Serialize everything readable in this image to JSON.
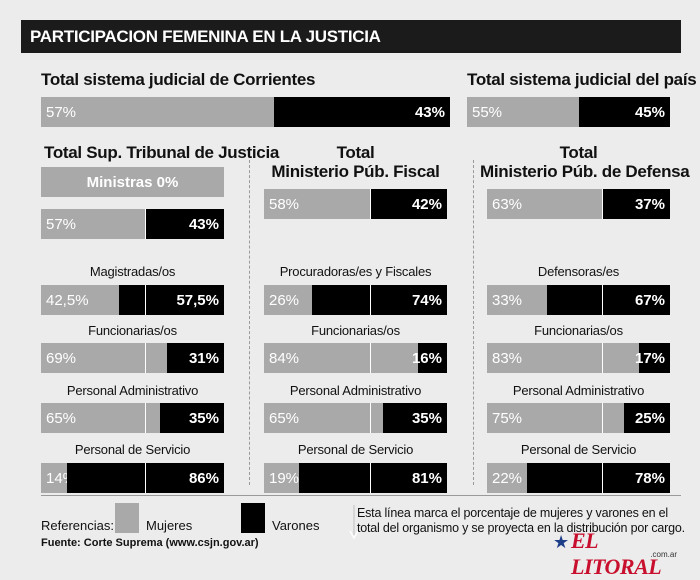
{
  "title": "PARTICIPACION FEMENINA EN LA JUSTICIA",
  "colors": {
    "mujeres": "#a9a9a9",
    "varones": "#000000",
    "title_bg": "#1b1b1b"
  },
  "chart_data": [
    {
      "type": "bar",
      "stacked": true,
      "title": "Total sistema judicial de Corrientes",
      "categories": [
        "Total sistema judicial de Corrientes"
      ],
      "series": [
        {
          "name": "Mujeres",
          "values": [
            57
          ]
        },
        {
          "name": "Varones",
          "values": [
            43
          ]
        }
      ],
      "labels": {
        "w": "57%",
        "m": "43%"
      }
    },
    {
      "type": "bar",
      "stacked": true,
      "title": "Total sistema judicial del país",
      "categories": [
        "Total sistema judicial del país"
      ],
      "series": [
        {
          "name": "Mujeres",
          "values": [
            55
          ]
        },
        {
          "name": "Varones",
          "values": [
            45
          ]
        }
      ],
      "labels": {
        "w": "55%",
        "m": "45%"
      }
    },
    {
      "type": "bar",
      "stacked": true,
      "title": "Total Sup. Tribunal de Justicia",
      "ministras_label": "Ministras 0%",
      "categories": [
        "Total",
        "Magistradas/os",
        "Funcionarias/os",
        "Personal Administrativo",
        "Personal de Servicio"
      ],
      "series": [
        {
          "name": "Mujeres",
          "values": [
            57,
            42.5,
            69,
            65,
            14
          ]
        },
        {
          "name": "Varones",
          "values": [
            43,
            57.5,
            31,
            35,
            86
          ]
        }
      ],
      "w_labels": [
        "57%",
        "42,5%",
        "69%",
        "65%",
        "14%"
      ],
      "m_labels": [
        "43%",
        "57,5%",
        "31%",
        "35%",
        "86%"
      ]
    },
    {
      "type": "bar",
      "stacked": true,
      "title": "Total Ministerio Púb. Fiscal",
      "categories": [
        "Total",
        "Procuradoras/es y Fiscales",
        "Funcionarias/os",
        "Personal Administrativo",
        "Personal de Servicio"
      ],
      "series": [
        {
          "name": "Mujeres",
          "values": [
            58,
            26,
            84,
            65,
            19
          ]
        },
        {
          "name": "Varones",
          "values": [
            42,
            74,
            16,
            35,
            81
          ]
        }
      ],
      "w_labels": [
        "58%",
        "26%",
        "84%",
        "65%",
        "19%"
      ],
      "m_labels": [
        "42%",
        "74%",
        "16%",
        "35%",
        "81%"
      ]
    },
    {
      "type": "bar",
      "stacked": true,
      "title": "Total Ministerio Púb. de Defensa",
      "categories": [
        "Total",
        "Defensoras/es",
        "Funcionarias/os",
        "Personal Administrativo",
        "Personal de Servicio"
      ],
      "series": [
        {
          "name": "Mujeres",
          "values": [
            63,
            33,
            83,
            75,
            22
          ]
        },
        {
          "name": "Varones",
          "values": [
            37,
            67,
            17,
            25,
            78
          ]
        }
      ],
      "w_labels": [
        "63%",
        "33%",
        "83%",
        "75%",
        "22%"
      ],
      "m_labels": [
        "37%",
        "67%",
        "17%",
        "25%",
        "78%"
      ]
    }
  ],
  "headings": {
    "corrientes": "Total sistema judicial de Corrientes",
    "pais": "Total sistema judicial del país",
    "stj": "Total Sup. Tribunal de Justicia",
    "fiscal_line1": "Total",
    "fiscal_line2": "Ministerio Púb. Fiscal",
    "defensa_line1": "Total",
    "defensa_line2": "Ministerio Púb. de Defensa"
  },
  "legend": {
    "referencias": "Referencias:",
    "mujeres": "Mujeres",
    "varones": "Varones",
    "note_line1": "Esta línea marca el porcentaje de mujeres y varones en el",
    "note_line2": "total del organismo y se proyecta en la distribución por cargo.",
    "source": "Fuente: Corte Suprema (www.csjn.gov.ar)"
  },
  "logo": {
    "text": "EL LITORAL",
    "sub": ".com.ar"
  }
}
